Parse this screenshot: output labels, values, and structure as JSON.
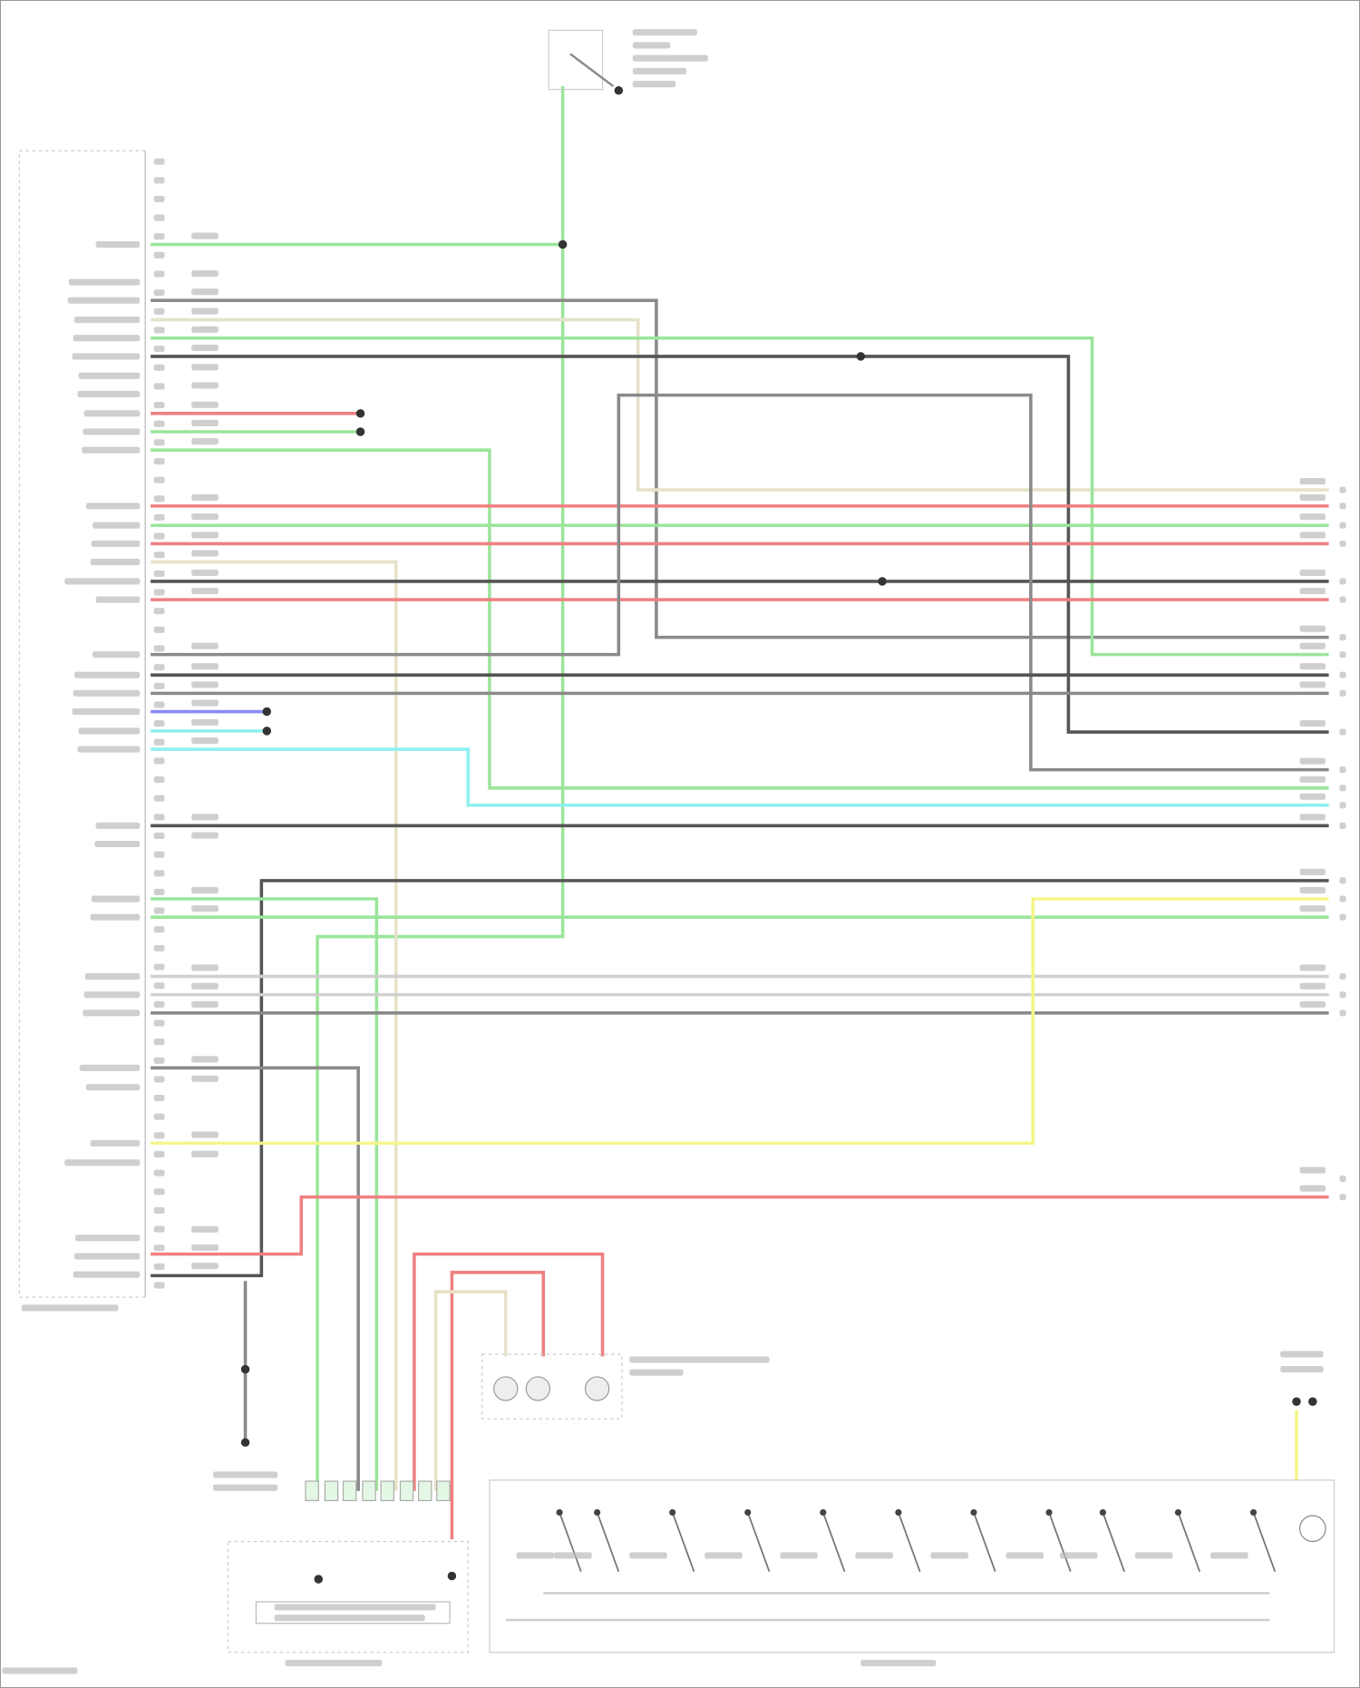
{
  "diagram": {
    "type": "wiring-diagram",
    "wire_colors": {
      "green": "#9be59b",
      "grey": "#8a8a8a",
      "dark": "#555555",
      "light": "#d0d0d0",
      "tan": "#e6e2c8",
      "red": "#f08080",
      "blue": "#8a8af5",
      "cyan": "#8ff0f0",
      "yellow": "#f5f58a"
    },
    "components": [
      {
        "id": "control-unit-connector"
      },
      {
        "id": "steering-switch-assembly"
      },
      {
        "id": "combination-meter"
      },
      {
        "id": "steering-switch"
      },
      {
        "id": "horn-lights"
      },
      {
        "id": "ground-point"
      }
    ]
  }
}
